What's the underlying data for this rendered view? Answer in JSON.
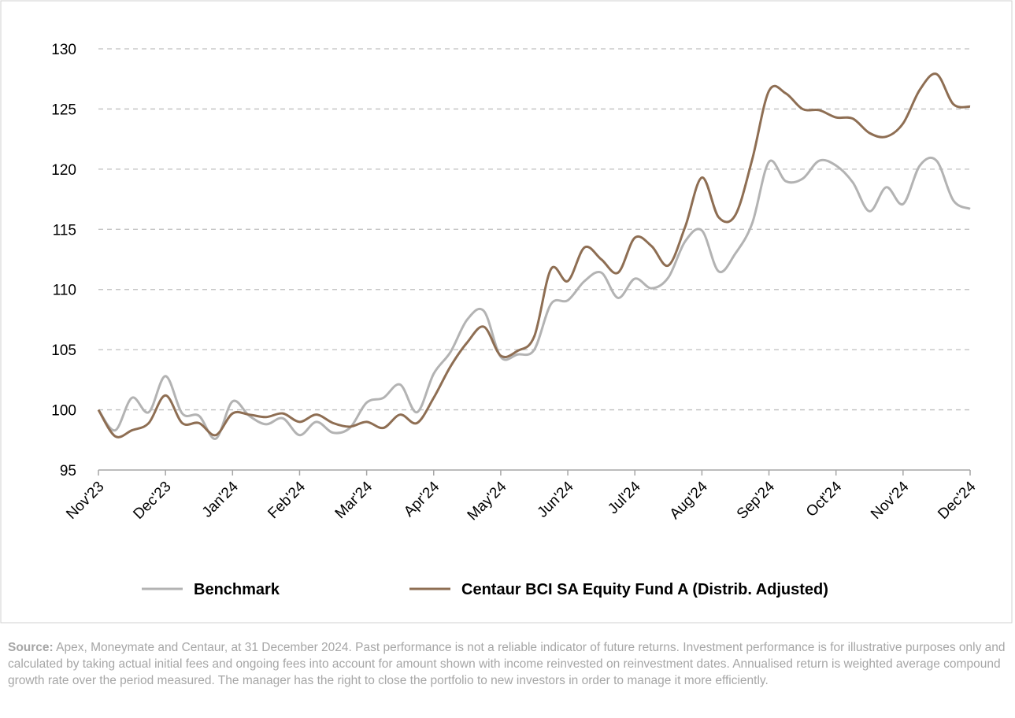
{
  "chart_data": {
    "type": "line",
    "x": [
      0,
      0.25,
      0.5,
      0.75,
      1,
      1.25,
      1.5,
      1.75,
      2,
      2.25,
      2.5,
      2.75,
      3,
      3.25,
      3.5,
      3.75,
      4,
      4.25,
      4.5,
      4.75,
      5,
      5.25,
      5.5,
      5.75,
      6,
      6.25,
      6.5,
      6.75,
      7,
      7.25,
      7.5,
      7.75,
      8,
      8.25,
      8.5,
      8.75,
      9,
      9.25,
      9.5,
      9.75,
      10,
      10.25,
      10.5,
      10.75,
      11,
      11.25,
      11.5,
      11.75,
      12,
      12.25,
      12.5,
      12.75,
      13
    ],
    "xlim": [
      0,
      13
    ],
    "xticks": [
      {
        "value": 0,
        "label": "Nov'23"
      },
      {
        "value": 1,
        "label": "Dec'23"
      },
      {
        "value": 2,
        "label": "Jan'24"
      },
      {
        "value": 3,
        "label": "Feb'24"
      },
      {
        "value": 4,
        "label": "Mar'24"
      },
      {
        "value": 5,
        "label": "Apr'24"
      },
      {
        "value": 6,
        "label": "May'24"
      },
      {
        "value": 7,
        "label": "Jun'24"
      },
      {
        "value": 8,
        "label": "Jul'24"
      },
      {
        "value": 9,
        "label": "Aug'24"
      },
      {
        "value": 10,
        "label": "Sep'24"
      },
      {
        "value": 11,
        "label": "Oct'24"
      },
      {
        "value": 12,
        "label": "Nov'24"
      },
      {
        "value": 13,
        "label": "Dec'24"
      }
    ],
    "ylim": [
      95,
      130
    ],
    "yticks": [
      95,
      100,
      105,
      110,
      115,
      120,
      125,
      130
    ],
    "grid": true,
    "legend": "bottom",
    "series": [
      {
        "name": "Benchmark",
        "color": "#b3b3b3",
        "values": [
          100,
          98.3,
          101.0,
          99.8,
          102.8,
          99.7,
          99.5,
          97.6,
          100.7,
          99.5,
          98.8,
          99.3,
          97.9,
          99.0,
          98.1,
          98.5,
          100.6,
          101.0,
          102.1,
          99.8,
          103.0,
          104.8,
          107.5,
          108.2,
          104.4,
          104.6,
          105.0,
          108.8,
          109.1,
          110.7,
          111.4,
          109.3,
          110.9,
          110.1,
          111.0,
          114.0,
          114.9,
          111.5,
          113.0,
          115.5,
          120.6,
          119.0,
          119.2,
          120.7,
          120.3,
          118.9,
          116.5,
          118.5,
          117.1,
          120.3,
          120.7,
          117.4,
          116.7
        ]
      },
      {
        "name": "Centaur BCI SA Equity Fund A (Distrib. Adjusted)",
        "color": "#8e6e53",
        "values": [
          100,
          97.8,
          98.3,
          98.9,
          101.2,
          98.9,
          98.9,
          97.9,
          99.7,
          99.6,
          99.4,
          99.7,
          99.0,
          99.6,
          98.9,
          98.6,
          99.0,
          98.5,
          99.6,
          98.9,
          101.0,
          103.6,
          105.6,
          106.9,
          104.5,
          104.9,
          106.1,
          111.7,
          110.7,
          113.5,
          112.5,
          111.4,
          114.3,
          113.6,
          112.0,
          115.2,
          119.3,
          116.0,
          116.2,
          120.8,
          126.5,
          126.3,
          125.0,
          124.9,
          124.3,
          124.2,
          123.0,
          122.7,
          123.8,
          126.6,
          127.9,
          125.4,
          125.2
        ]
      }
    ]
  },
  "footer": {
    "source_label": "Source:",
    "text": "Apex, Moneymate and Centaur, at 31 December 2024. Past performance is not a reliable indicator of future returns. Investment performance is for illustrative purposes only and calculated by taking actual initial fees and ongoing fees into account for amount shown with income reinvested on reinvestment dates. Annualised return is weighted average compound growth rate over the period measured. The manager has the right to close the portfolio to new investors in order to manage it more efficiently."
  }
}
